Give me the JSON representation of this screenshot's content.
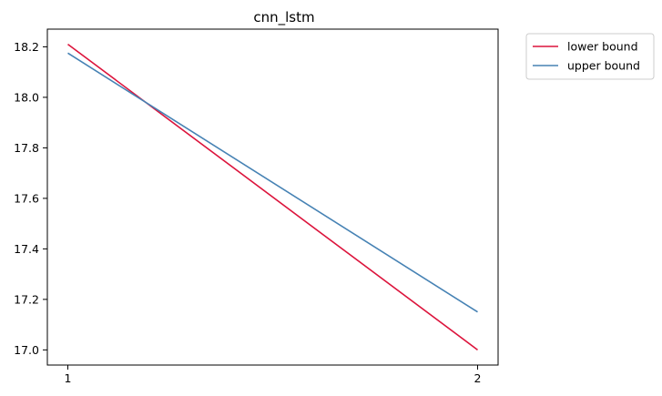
{
  "chart_data": {
    "type": "line",
    "title": "cnn_lstm",
    "xlabel": "",
    "ylabel": "",
    "x": [
      1,
      2
    ],
    "xticks": [
      "1",
      "2"
    ],
    "yticks": [
      "17.0",
      "17.2",
      "17.4",
      "17.6",
      "17.8",
      "18.0",
      "18.2"
    ],
    "ytick_values": [
      17.0,
      17.2,
      17.4,
      17.6,
      17.8,
      18.0,
      18.2
    ],
    "xlim": [
      0.95,
      2.05
    ],
    "ylim": [
      16.94,
      18.27
    ],
    "grid": false,
    "legend_position": "outside top-right",
    "series": [
      {
        "name": "lower bound",
        "color": "#dc143c",
        "values": [
          18.21,
          17.0
        ]
      },
      {
        "name": "upper bound",
        "color": "#4682b4",
        "values": [
          18.175,
          17.15
        ]
      }
    ]
  }
}
